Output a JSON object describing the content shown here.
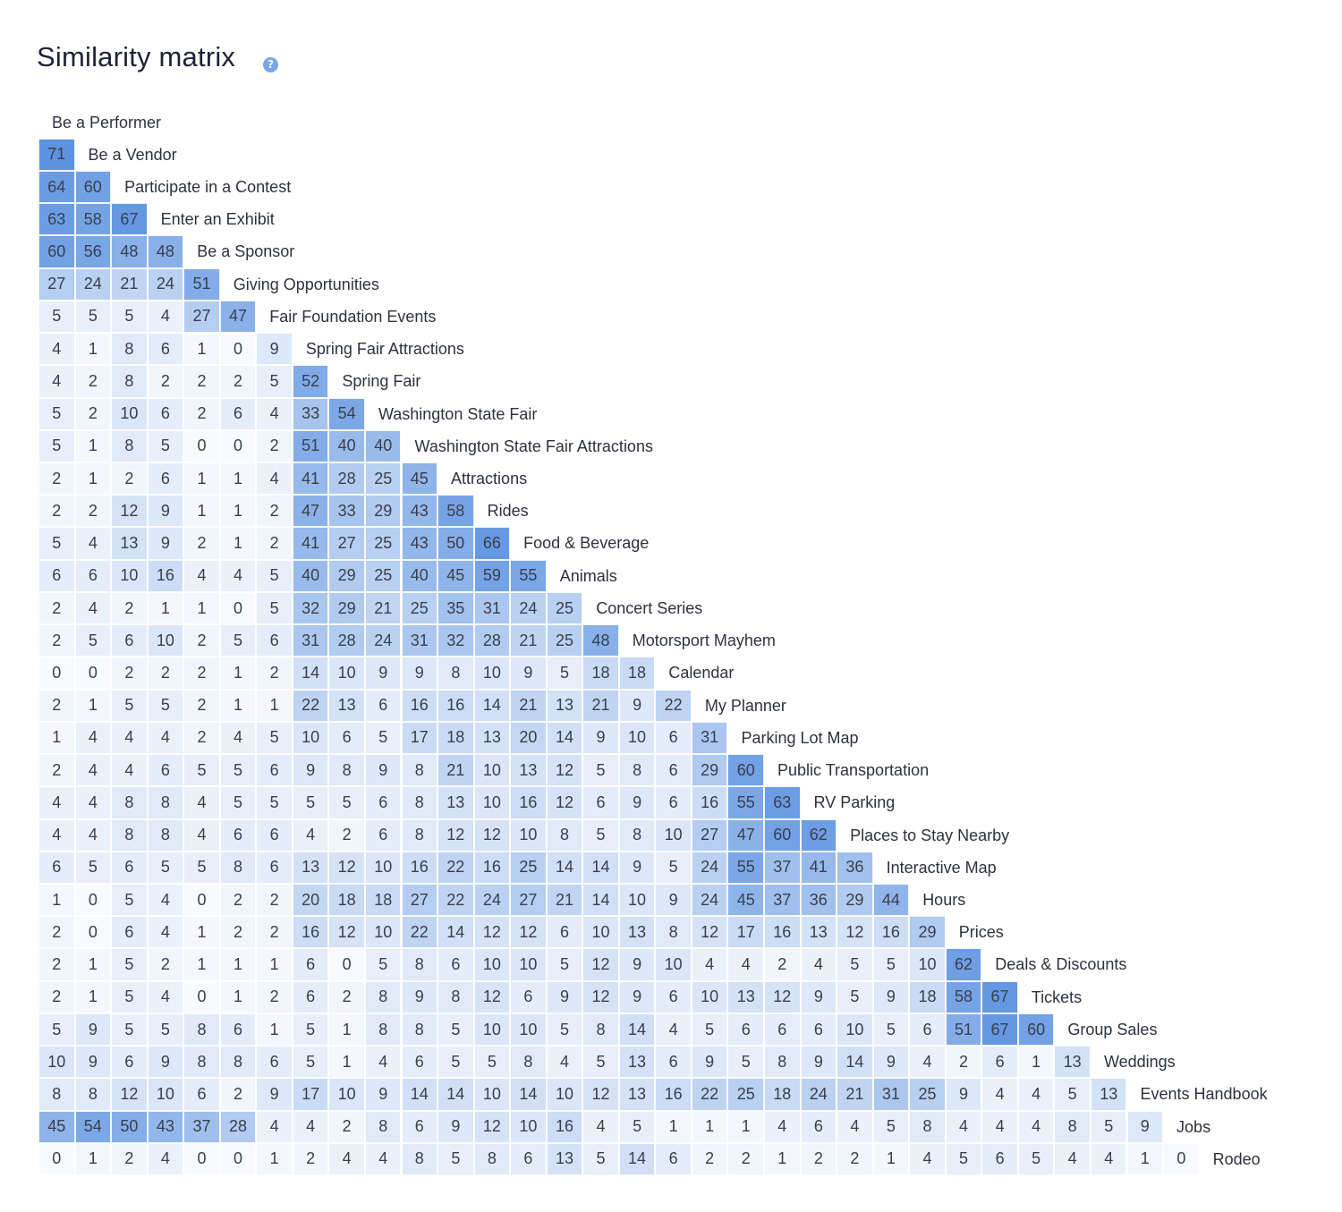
{
  "header": {
    "title": "Similarity matrix",
    "help_icon": "help-icon"
  },
  "colors": {
    "max": "#5d93e1",
    "min": "#ffffff",
    "text": "#3a3f4c"
  },
  "chart_data": {
    "type": "heatmap",
    "title": "Similarity matrix",
    "layout": "lower-triangular",
    "value_range": [
      0,
      71
    ],
    "labels": [
      "Be a Performer",
      "Be a Vendor",
      "Participate in a Contest",
      "Enter an Exhibit",
      "Be a Sponsor",
      "Giving Opportunities",
      "Fair Foundation Events",
      "Spring Fair Attractions",
      "Spring Fair",
      "Washington State Fair",
      "Washington State Fair Attractions",
      "Attractions",
      "Rides",
      "Food & Beverage",
      "Animals",
      "Concert Series",
      "Motorsport Mayhem",
      "Calendar",
      "My Planner",
      "Parking Lot Map",
      "Public Transportation",
      "RV Parking",
      "Places to Stay Nearby",
      "Interactive Map",
      "Hours",
      "Prices",
      "Deals & Discounts",
      "Tickets",
      "Group Sales",
      "Weddings",
      "Events Handbook",
      "Jobs",
      "Rodeo"
    ],
    "rows": [
      [],
      [
        71
      ],
      [
        64,
        60
      ],
      [
        63,
        58,
        67
      ],
      [
        60,
        56,
        48,
        48
      ],
      [
        27,
        24,
        21,
        24,
        51
      ],
      [
        5,
        5,
        5,
        4,
        27,
        47
      ],
      [
        4,
        1,
        8,
        6,
        1,
        0,
        9
      ],
      [
        4,
        2,
        8,
        2,
        2,
        2,
        5,
        52
      ],
      [
        5,
        2,
        10,
        6,
        2,
        6,
        4,
        33,
        54
      ],
      [
        5,
        1,
        8,
        5,
        0,
        0,
        2,
        51,
        40,
        40
      ],
      [
        2,
        1,
        2,
        6,
        1,
        1,
        4,
        41,
        28,
        25,
        45
      ],
      [
        2,
        2,
        12,
        9,
        1,
        1,
        2,
        47,
        33,
        29,
        43,
        58
      ],
      [
        5,
        4,
        13,
        9,
        2,
        1,
        2,
        41,
        27,
        25,
        43,
        50,
        66
      ],
      [
        6,
        6,
        10,
        16,
        4,
        4,
        5,
        40,
        29,
        25,
        40,
        45,
        59,
        55
      ],
      [
        2,
        4,
        2,
        1,
        1,
        0,
        5,
        32,
        29,
        21,
        25,
        35,
        31,
        24,
        25
      ],
      [
        2,
        5,
        6,
        10,
        2,
        5,
        6,
        31,
        28,
        24,
        31,
        32,
        28,
        21,
        25,
        48
      ],
      [
        0,
        0,
        2,
        2,
        2,
        1,
        2,
        14,
        10,
        9,
        9,
        8,
        10,
        9,
        5,
        18,
        18
      ],
      [
        2,
        1,
        5,
        5,
        2,
        1,
        1,
        22,
        13,
        6,
        16,
        16,
        14,
        21,
        13,
        21,
        9,
        22
      ],
      [
        1,
        4,
        4,
        4,
        2,
        4,
        5,
        10,
        6,
        5,
        17,
        18,
        13,
        20,
        14,
        9,
        10,
        6,
        31
      ],
      [
        2,
        4,
        4,
        6,
        5,
        5,
        6,
        9,
        8,
        9,
        8,
        21,
        10,
        13,
        12,
        5,
        8,
        6,
        29,
        60
      ],
      [
        4,
        4,
        8,
        8,
        4,
        5,
        5,
        5,
        5,
        6,
        8,
        13,
        10,
        16,
        12,
        6,
        9,
        6,
        16,
        55,
        63
      ],
      [
        4,
        4,
        8,
        8,
        4,
        6,
        6,
        4,
        2,
        6,
        8,
        12,
        12,
        10,
        8,
        5,
        8,
        10,
        27,
        47,
        60,
        62
      ],
      [
        6,
        5,
        6,
        5,
        5,
        8,
        6,
        13,
        12,
        10,
        16,
        22,
        16,
        25,
        14,
        14,
        9,
        5,
        24,
        55,
        37,
        41,
        36
      ],
      [
        1,
        0,
        5,
        4,
        0,
        2,
        2,
        20,
        18,
        18,
        27,
        22,
        24,
        27,
        21,
        14,
        10,
        9,
        24,
        45,
        37,
        36,
        29,
        44
      ],
      [
        2,
        0,
        6,
        4,
        1,
        2,
        2,
        16,
        12,
        10,
        22,
        14,
        12,
        12,
        6,
        10,
        13,
        8,
        12,
        17,
        16,
        13,
        12,
        16,
        29
      ],
      [
        2,
        1,
        5,
        2,
        1,
        1,
        1,
        6,
        0,
        5,
        8,
        6,
        10,
        10,
        5,
        12,
        9,
        10,
        4,
        4,
        2,
        4,
        5,
        5,
        10,
        62
      ],
      [
        2,
        1,
        5,
        4,
        0,
        1,
        2,
        6,
        2,
        8,
        9,
        8,
        12,
        6,
        9,
        12,
        9,
        6,
        10,
        13,
        12,
        9,
        5,
        9,
        18,
        58,
        67
      ],
      [
        5,
        9,
        5,
        5,
        8,
        6,
        1,
        5,
        1,
        8,
        8,
        5,
        10,
        10,
        5,
        8,
        14,
        4,
        5,
        6,
        6,
        6,
        10,
        5,
        6,
        51,
        67,
        60
      ],
      [
        10,
        9,
        6,
        9,
        8,
        8,
        6,
        5,
        1,
        4,
        6,
        5,
        5,
        8,
        4,
        5,
        13,
        6,
        9,
        5,
        8,
        9,
        14,
        9,
        4,
        2,
        6,
        1,
        13
      ],
      [
        8,
        8,
        12,
        10,
        6,
        2,
        9,
        17,
        10,
        9,
        14,
        14,
        10,
        14,
        10,
        12,
        13,
        16,
        22,
        25,
        18,
        24,
        21,
        31,
        25,
        9,
        4,
        4,
        5,
        13
      ],
      [
        45,
        54,
        50,
        43,
        37,
        28,
        4,
        4,
        2,
        8,
        6,
        9,
        12,
        10,
        16,
        4,
        5,
        1,
        1,
        1,
        4,
        6,
        4,
        5,
        8,
        4,
        4,
        4,
        8,
        5,
        9
      ],
      [
        0,
        1,
        2,
        4,
        0,
        0,
        1,
        2,
        4,
        4,
        8,
        5,
        8,
        6,
        13,
        5,
        14,
        6,
        2,
        2,
        1,
        2,
        2,
        1,
        4,
        5,
        6,
        5,
        4,
        4,
        1,
        0
      ]
    ]
  }
}
